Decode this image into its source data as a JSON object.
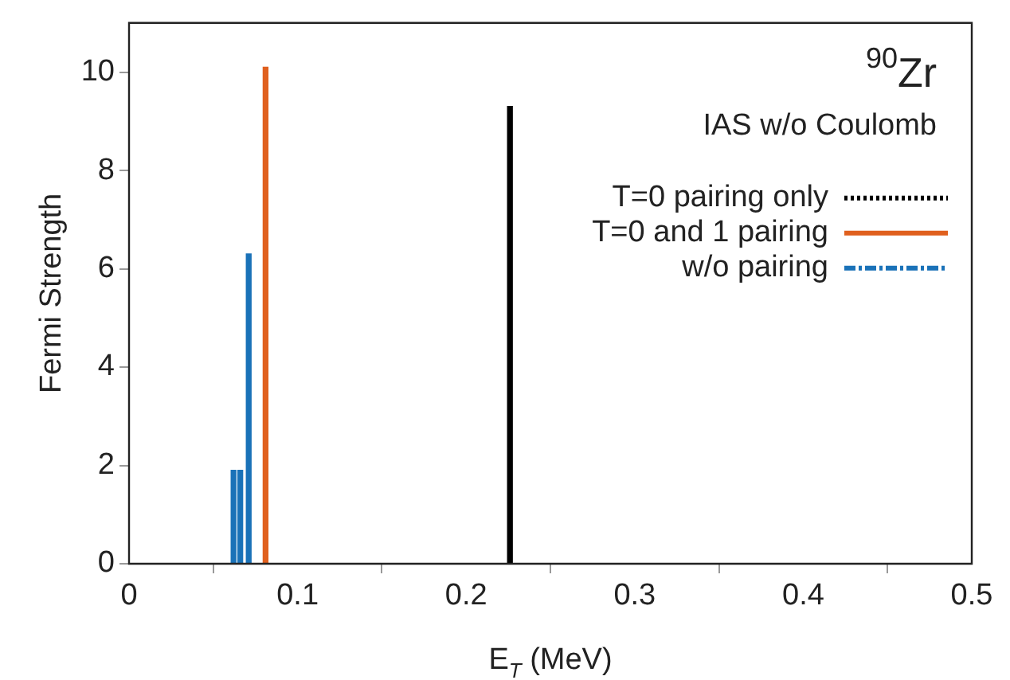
{
  "chart_data": {
    "type": "bar",
    "xlabel": "E$_{T}$ (MeV)",
    "ylabel": "Fermi Strength",
    "annotations": [
      "$^{90}$Zr",
      "IAS w/o Coulomb"
    ],
    "series": [
      {
        "name": "T=0 pairing only",
        "color": "#000000",
        "line_style": "dotted",
        "x": [
          0.226
        ],
        "values": [
          9.3
        ]
      },
      {
        "name": "T=0 and 1 pairing",
        "color": "#e0601e",
        "line_style": "solid",
        "x": [
          0.081
        ],
        "values": [
          10.1
        ]
      },
      {
        "name": "w/o pairing",
        "color": "#1a72b8",
        "line_style": "dashed",
        "x": [
          0.062,
          0.066,
          0.071
        ],
        "values": [
          1.9,
          1.9,
          6.3
        ]
      }
    ],
    "xlim": [
      0,
      0.5
    ],
    "xticks": [
      0,
      {
        "value": 0.1,
        "label": "0.1"
      },
      {
        "value": 0.2,
        "label": "0.2"
      },
      {
        "value": 0.3,
        "label": "0.3"
      },
      {
        "value": 0.4,
        "label": "0.4"
      },
      {
        "value": 0.5,
        "label": "0.5"
      }
    ],
    "ylim": [
      0,
      11
    ],
    "yticks": [
      0,
      2,
      4,
      6,
      8,
      10
    ],
    "grid": false,
    "legend": "top right"
  }
}
